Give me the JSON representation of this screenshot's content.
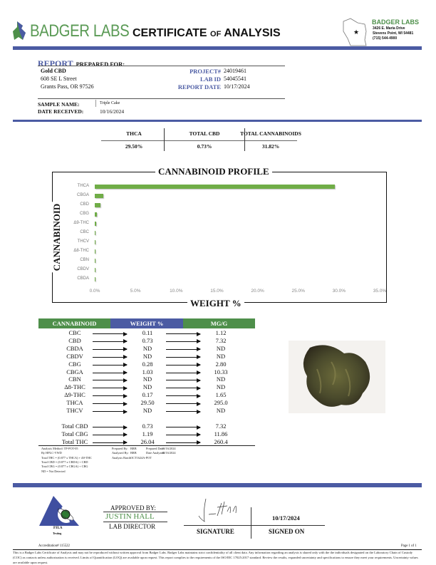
{
  "header": {
    "logo_text": "BADGER LABS",
    "title_main1": "CERTIFICATE",
    "title_of": "of",
    "title_main2": "ANALYSIS",
    "lab_name": "BADGER LABS",
    "lab_address1": "3426 E. Maria Drive",
    "lab_address2": "Stevens Point, WI 54481",
    "lab_phone": "(715) 544-4900"
  },
  "client": {
    "heading_report": "REPORT",
    "heading_rest": "PREPARED FOR:",
    "name": "Gold CBD",
    "address1": "608 SE L Street",
    "address2": "Grants Pass, OR 97526"
  },
  "report_info": [
    {
      "label": "PROJECT#",
      "value": "24019461"
    },
    {
      "label": "LAB ID",
      "value": "54045541"
    },
    {
      "label": "REPORT DATE",
      "value": "10/17/2024"
    }
  ],
  "sample": {
    "name_label": "SAMPLE NAME:",
    "name": "Triple Cake",
    "received_label": "DATE RECEIVED:",
    "received": "10/16/2024"
  },
  "summary": {
    "headers": [
      "THCA",
      "TOTAL CBD",
      "TOTAL CANNABINOIDS"
    ],
    "values": [
      "29.50%",
      "0.73%",
      "31.82%"
    ]
  },
  "chart_data": {
    "type": "bar",
    "orientation": "horizontal",
    "title": "CANNABINOID PROFILE",
    "xlabel": "WEIGHT %",
    "ylabel": "CANNABINOID",
    "categories": [
      "THCA",
      "CBGA",
      "CBD",
      "CBG",
      "Δ9-THC",
      "CBC",
      "THCV",
      "Δ8-THC",
      "CBN",
      "CBDV",
      "CBDA"
    ],
    "values": [
      29.5,
      1.03,
      0.73,
      0.28,
      0.17,
      0.11,
      0,
      0,
      0,
      0,
      0
    ],
    "xlim": [
      0,
      35
    ],
    "xticks": [
      "0.0%",
      "5.0%",
      "10.0%",
      "15.0%",
      "20.0%",
      "25.0%",
      "30.0%",
      "35.0%"
    ],
    "bar_color": "#70ad47",
    "grid": false
  },
  "results": {
    "headers": [
      "CANNABINOID",
      "WEIGHT %",
      "MG/G"
    ],
    "rows": [
      [
        "CBC",
        "0.11",
        "1.12"
      ],
      [
        "CBD",
        "0.73",
        "7.32"
      ],
      [
        "CBDA",
        "ND",
        "ND"
      ],
      [
        "CBDV",
        "ND",
        "ND"
      ],
      [
        "CBG",
        "0.28",
        "2.80"
      ],
      [
        "CBGA",
        "1.03",
        "10.33"
      ],
      [
        "CBN",
        "ND",
        "ND"
      ],
      [
        "Δ8-THC",
        "ND",
        "ND"
      ],
      [
        "Δ9-THC",
        "0.17",
        "1.65"
      ],
      [
        "THCA",
        "29.50",
        "295.0"
      ],
      [
        "THCV",
        "ND",
        "ND"
      ]
    ],
    "totals": [
      [
        "Total CBD",
        "0.73",
        "7.32"
      ],
      [
        "Total CBG",
        "1.19",
        "11.86"
      ],
      [
        "Total THC",
        "26.04",
        "260.4"
      ]
    ]
  },
  "method": {
    "lines": [
      "Analysis Method: TP-POT-05",
      "By HPLC-VWD",
      "Total THC = (0.877 x THCA) + Δ9-THC",
      "Total CBD = (0.877 x CBDA) + CBD",
      "Total CBG = (0.877 x CBGA) + CBG",
      "ND = Not Detected"
    ],
    "prepared_by_label": "Prepared By:",
    "prepared_by": "BRB",
    "prepared_date_label": "Prepared Date:",
    "prepared_date": "10/16/2024",
    "analyzed_by_label": "Analyzed By:",
    "analyzed_by": "BRB",
    "date_analyzed_label": "Date Analyzed:",
    "date_analyzed": "10/16/2024",
    "batch_label": "Analysis Batch:",
    "batch": "OCT1624A-POT"
  },
  "footer": {
    "pjla": "PJLA",
    "pjla_sub": "Testing",
    "accreditation": "Accreditation# 115522",
    "approved_by": "APPROVED BY:",
    "approver": "JUSTIN HALL",
    "approver_title": "LAB DIRECTOR",
    "signature_label": "SIGNATURE",
    "signed_date": "10/17/2024",
    "signed_on_label": "SIGNED ON",
    "page": "Page 1 of 1",
    "disclaimer": "This is a Badger Labs Certificate of Analysis and may not be reproduced without written approval from Badger Labs. Badger Labs maintains strict confidentiality of all client data. Any information regarding an analysis is shared only with the the individuals designated on the Laboratory Chain of Custody (COC) as contacts unless authorization is received. Limits of Quantification (LOQ) are available upon request. This report complies to the requirements of the ISO/IEC 17025:2017 standard. Review the results, expanded uncertainty and specifications to ensure they meet your requirements. Uncertainty values are available upon request."
  },
  "colors": {
    "brand_blue": "#4b5ba3",
    "brand_green": "#4e8f4a",
    "bar_green": "#70ad47"
  }
}
